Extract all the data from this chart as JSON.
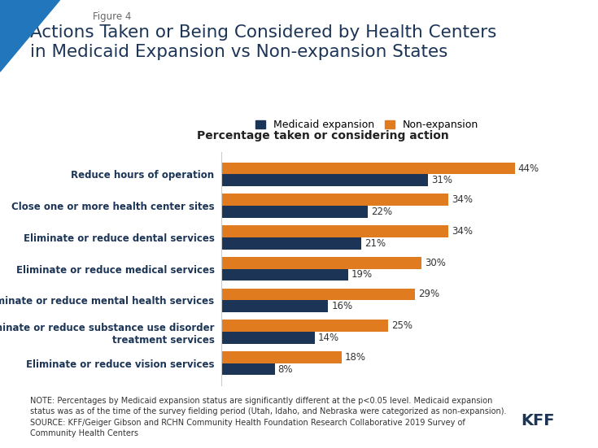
{
  "title_fig": "Figure 4",
  "title_main": "Actions Taken or Being Considered by Health Centers\nin Medicaid Expansion vs Non-expansion States",
  "subtitle": "Percentage taken or considering action",
  "legend_labels": [
    "Medicaid expansion",
    "Non-expansion"
  ],
  "colors": [
    "#1c3557",
    "#e07b20"
  ],
  "categories": [
    "Reduce hours of operation",
    "Close one or more health center sites",
    "Eliminate or reduce dental services",
    "Eliminate or reduce medical services",
    "Eliminate or reduce mental health services",
    "Eliminate or reduce substance use disorder\ntreatment services",
    "Eliminate or reduce vision services"
  ],
  "expansion_values": [
    31,
    22,
    21,
    19,
    16,
    14,
    8
  ],
  "nonexpansion_values": [
    44,
    34,
    34,
    30,
    29,
    25,
    18
  ],
  "note": "NOTE: Percentages by Medicaid expansion status are significantly different at the p<0.05 level. Medicaid expansion\nstatus was as of the time of the survey fielding period (Utah, Idaho, and Nebraska were categorized as non-expansion).\nSOURCE: KFF/Geiger Gibson and RCHN Community Health Foundation Research Collaborative 2019 Survey of\nCommunity Health Centers",
  "xlim": [
    0,
    52
  ],
  "bar_height": 0.38,
  "background_color": "#ffffff",
  "title_color": "#1c3557",
  "figsize": [
    7.35,
    5.51
  ],
  "dpi": 100,
  "triangle_color": "#2176bc"
}
